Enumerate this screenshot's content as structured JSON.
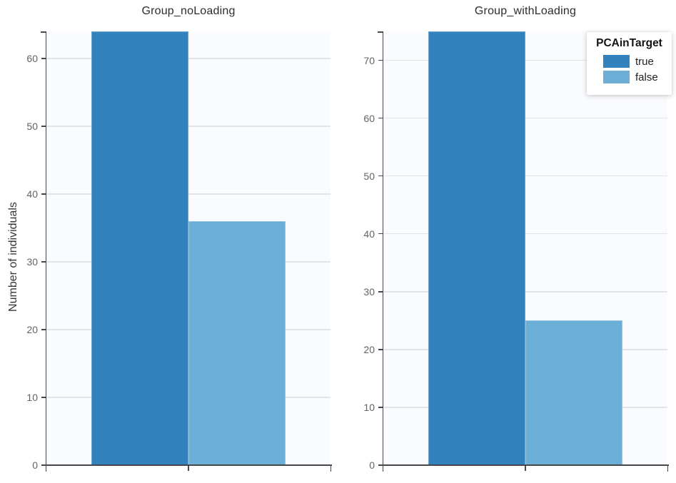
{
  "figure": {
    "y_axis_title": "Number of individuals"
  },
  "legend": {
    "title": "PCAinTarget",
    "items": [
      {
        "label": "true",
        "color": "#3182bd"
      },
      {
        "label": "false",
        "color": "#6baed6"
      }
    ]
  },
  "colors": {
    "bar_true": "#3182bd",
    "bar_false": "#6baed6",
    "axis": "#45474b",
    "gridline": "#e3e4e8",
    "plot_background": "#fafbfe",
    "tick_text": "#5f6368"
  },
  "chart_data": {
    "type": "bar",
    "title": "",
    "ylabel": "Number of individuals",
    "xlabel": "",
    "legend_title": "PCAinTarget",
    "legend_position": "top-right",
    "grid": true,
    "series_names": [
      "true",
      "false"
    ],
    "facets": [
      {
        "title": "Group_noLoading",
        "ylim": [
          0,
          64
        ],
        "yticks": [
          0,
          10,
          20,
          30,
          40,
          50,
          60
        ],
        "series": [
          {
            "name": "true",
            "value": 64,
            "color": "#3182bd"
          },
          {
            "name": "false",
            "value": 36,
            "color": "#6baed6"
          }
        ]
      },
      {
        "title": "Group_withLoading",
        "ylim": [
          0,
          75
        ],
        "yticks": [
          0,
          10,
          20,
          30,
          40,
          50,
          60,
          70
        ],
        "series": [
          {
            "name": "true",
            "value": 75,
            "color": "#3182bd"
          },
          {
            "name": "false",
            "value": 25,
            "color": "#6baed6"
          }
        ]
      }
    ]
  }
}
